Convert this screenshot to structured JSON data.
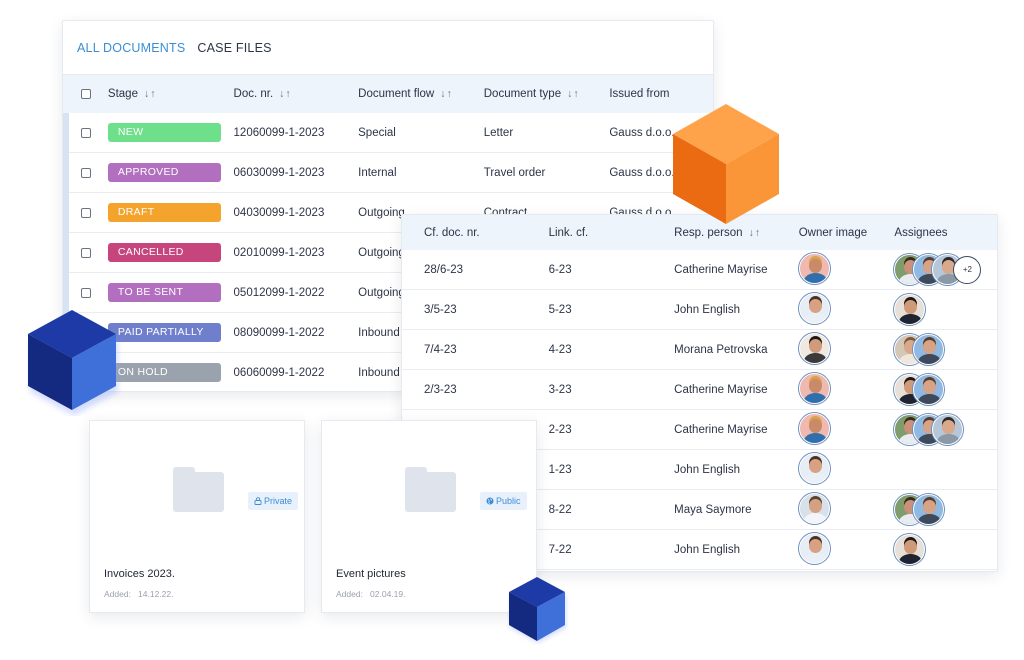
{
  "tabs": [
    {
      "label": "ALL DOCUMENTS",
      "active": true
    },
    {
      "label": "CASE FILES",
      "active": false
    }
  ],
  "documents": {
    "columns": {
      "stage": "Stage",
      "doc_nr": "Doc. nr.",
      "flow": "Document flow",
      "type": "Document type",
      "issued": "Issued from"
    },
    "sort_icon": "↓↑",
    "rows": [
      {
        "stage": "NEW",
        "color": "#6ee08b",
        "doc_nr": "12060099-1-2023",
        "flow": "Special",
        "type": "Letter",
        "issued": "Gauss d.o.o."
      },
      {
        "stage": "APPROVED",
        "color": "#b26fbf",
        "doc_nr": "06030099-1-2023",
        "flow": "Internal",
        "type": "Travel order",
        "issued": "Gauss d.o.o."
      },
      {
        "stage": "DRAFT",
        "color": "#f4a42c",
        "doc_nr": "04030099-1-2023",
        "flow": "Outgoing",
        "type": "Contract",
        "issued": "Gauss d.o.o."
      },
      {
        "stage": "CANCELLED",
        "color": "#c7457d",
        "doc_nr": "02010099-1-2023",
        "flow": "Outgoing",
        "type": "",
        "issued": ""
      },
      {
        "stage": "TO BE SENT",
        "color": "#b26fbf",
        "doc_nr": "05012099-1-2022",
        "flow": "Outgoing",
        "type": "",
        "issued": ""
      },
      {
        "stage": "PAID PARTIALLY",
        "color": "#6f7fcc",
        "doc_nr": "08090099-1-2022",
        "flow": "Inbound",
        "type": "",
        "issued": ""
      },
      {
        "stage": "ON HOLD",
        "color": "#9aa2ad",
        "doc_nr": "06060099-1-2022",
        "flow": "Inbound",
        "type": "",
        "issued": ""
      }
    ]
  },
  "case_files": {
    "columns": {
      "cf_doc": "Cf. doc. nr.",
      "link": "Link. cf.",
      "resp": "Resp. person",
      "owner": "Owner image",
      "assignees": "Assignees"
    },
    "sort_icon": "↓↑",
    "rows": [
      {
        "cf": "28/6-23",
        "link": "6-23",
        "resp": "Catherine Mayrise",
        "owner": "catherine",
        "assignees": [
          "a",
          "b",
          "c"
        ],
        "more": "+2"
      },
      {
        "cf": "3/5-23",
        "link": "5-23",
        "resp": "John English",
        "owner": "john",
        "assignees": [
          "d"
        ],
        "more": ""
      },
      {
        "cf": "7/4-23",
        "link": "4-23",
        "resp": "Morana Petrovska",
        "owner": "morana",
        "assignees": [
          "e",
          "b"
        ],
        "more": ""
      },
      {
        "cf": "2/3-23",
        "link": "3-23",
        "resp": "Catherine Mayrise",
        "owner": "catherine",
        "assignees": [
          "d",
          "b"
        ],
        "more": ""
      },
      {
        "cf": "",
        "link": "2-23",
        "resp": "Catherine Mayrise",
        "owner": "catherine",
        "assignees": [
          "a",
          "b",
          "c"
        ],
        "more": ""
      },
      {
        "cf": "",
        "link": "1-23",
        "resp": "John English",
        "owner": "john",
        "assignees": [],
        "more": ""
      },
      {
        "cf": "",
        "link": "8-22",
        "resp": "Maya Saymore",
        "owner": "maya",
        "assignees": [
          "a",
          "b"
        ],
        "more": ""
      },
      {
        "cf": "",
        "link": "7-22",
        "resp": "John English",
        "owner": "john",
        "assignees": [
          "d"
        ],
        "more": ""
      }
    ]
  },
  "folders": [
    {
      "name": "Invoices 2023.",
      "added_label": "Added:",
      "added_date": "14.12.22.",
      "visibility": "Private",
      "visibility_icon": "lock-icon"
    },
    {
      "name": "Event pictures",
      "added_label": "Added:",
      "added_date": "02.04.19.",
      "visibility": "Public",
      "visibility_icon": "globe-icon"
    }
  ],
  "colors": {
    "accent": "#3a8ed6",
    "header_bg": "#eef4fc",
    "cube_orange": "#f28a2a",
    "cube_blue": "#1f44a8"
  }
}
